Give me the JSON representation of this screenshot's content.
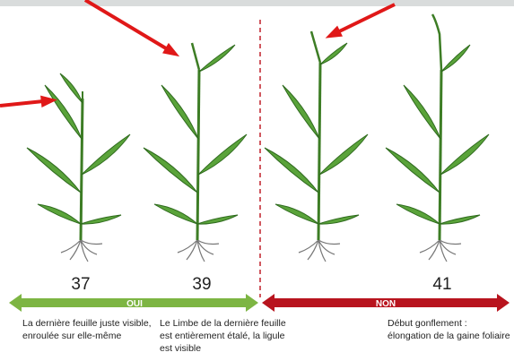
{
  "stages": [
    {
      "number": "37",
      "description": [
        "La dernière feuille juste visible,",
        "enroulée sur elle-même"
      ]
    },
    {
      "number": "39",
      "description": [
        "Le Limbe de la dernière feuille",
        "est entièrement étalé, la ligule",
        "est visible"
      ]
    },
    {
      "number": "41",
      "description": [
        "Début gonflement :",
        "élongation de la gaine foliaire"
      ]
    }
  ],
  "arrows": {
    "yes": "OUI",
    "no": "NON"
  }
}
